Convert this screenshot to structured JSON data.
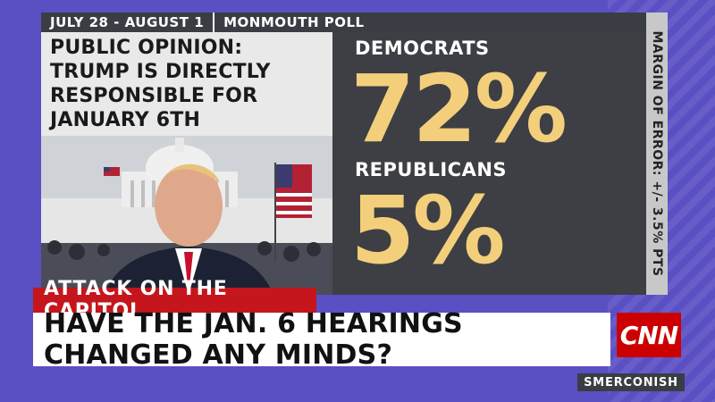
{
  "header": {
    "date_range": "JULY 28 - AUGUST 1",
    "source": "MONMOUTH POLL"
  },
  "title": {
    "lines": [
      "PUBLIC OPINION:",
      "TRUMP IS DIRECTLY",
      "RESPONSIBLE FOR",
      "JANUARY 6TH"
    ]
  },
  "results": [
    {
      "label": "DEMOCRATS",
      "value": "72%"
    },
    {
      "label": "REPUBLICANS",
      "value": "5%"
    }
  ],
  "margin_of_error": "MARGIN OF ERROR: +/- 3.5% PTS",
  "lower_third": {
    "kicker": "ATTACK ON THE CAPITOL",
    "headline": "HAVE THE JAN. 6 HEARINGS CHANGED ANY MINDS?"
  },
  "network": "CNN",
  "show": "SMERCONISH",
  "colors": {
    "background": "#5b4fc4",
    "accent_number": "#f4cf7b",
    "kicker_red": "#c4161c",
    "panel_dark": "#3d3f44"
  }
}
